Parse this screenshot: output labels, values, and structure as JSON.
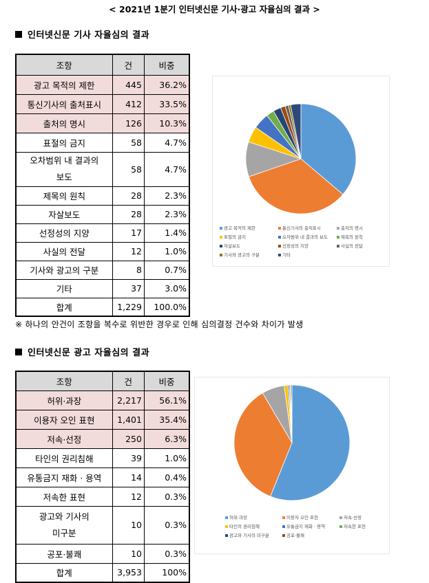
{
  "title": "< 2021년 1분기 인터넷신문 기사·광고 자율심의 결과 >",
  "section1": {
    "heading": "인터넷신문 기사 자율심의 결과",
    "header": [
      "조항",
      "건",
      "비중"
    ],
    "rows": [
      [
        "광고 목적의 제한",
        "445",
        "36.2%"
      ],
      [
        "통신기사의 출처표시",
        "412",
        "33.5%"
      ],
      [
        "출처의 명시",
        "126",
        "10.3%"
      ],
      [
        "표절의 금지",
        "58",
        "4.7%"
      ],
      [
        "오차범위 내 결과의",
        "58",
        "4.7%"
      ],
      [
        "제목의 원칙",
        "28",
        "2.3%"
      ],
      [
        "자살보도",
        "28",
        "2.3%"
      ],
      [
        "선정성의 지양",
        "17",
        "1.4%"
      ],
      [
        "사실의 전달",
        "12",
        "1.0%"
      ],
      [
        "기사와 광고의 구분",
        "8",
        "0.7%"
      ],
      [
        "기타",
        "37",
        "3.0%"
      ],
      [
        "합계",
        "1,229",
        "100.0%"
      ]
    ],
    "row5_line2": "보도",
    "note": "※ 하나의 안건이 조항을 복수로 위반한 경우로 인해 심의결정 건수와 차이가 발생"
  },
  "section2": {
    "heading": "인터넷신문 광고 자율심의 결과",
    "header": [
      "조항",
      "건",
      "비중"
    ],
    "rows": [
      [
        "허위·과장",
        "2,217",
        "56.1%"
      ],
      [
        "이용자 오인 표현",
        "1,401",
        "35.4%"
      ],
      [
        "저속·선정",
        "250",
        "6.3%"
      ],
      [
        "타인의 권리침해",
        "39",
        "1.0%"
      ],
      [
        "유통금지 재화 · 용역",
        "14",
        "0.4%"
      ],
      [
        "저속한 표현",
        "12",
        "0.3%"
      ],
      [
        "광고와 기사의",
        "10",
        "0.3%"
      ],
      [
        "공포·불쾌",
        "10",
        "0.3%"
      ],
      [
        "합계",
        "3,953",
        "100%"
      ]
    ],
    "row7_line2": "미구분"
  },
  "chart_data": [
    {
      "type": "pie",
      "categories": [
        "광고 목적의 제한",
        "통신기사의 출처표시",
        "출처의 명시",
        "표절의 금지",
        "오차범위 내 결과의 보도",
        "제목의 원칙",
        "자살보도",
        "선정성의 지양",
        "사실의 전달",
        "기사와 광고의 구분",
        "기타"
      ],
      "values": [
        445,
        412,
        126,
        58,
        58,
        28,
        28,
        17,
        12,
        8,
        37
      ],
      "colors": [
        "#5b9bd5",
        "#ed7d31",
        "#a5a5a5",
        "#ffc000",
        "#4472c4",
        "#70ad47",
        "#264478",
        "#9e480e",
        "#636363",
        "#997300",
        "#2f4a7a"
      ],
      "legend": "bottom"
    },
    {
      "type": "pie",
      "categories": [
        "허위·과장",
        "이용자 오인 표현",
        "저속·선정",
        "타인의 권리침해",
        "유통금지 재화 · 용역",
        "저속한 표현",
        "광고와 기사의 미구분",
        "공포·불쾌"
      ],
      "values": [
        2217,
        1401,
        250,
        39,
        14,
        12,
        10,
        10
      ],
      "colors": [
        "#5b9bd5",
        "#ed7d31",
        "#a5a5a5",
        "#ffc000",
        "#4472c4",
        "#70ad47",
        "#264478",
        "#9e480e"
      ],
      "legend": "bottom"
    }
  ]
}
